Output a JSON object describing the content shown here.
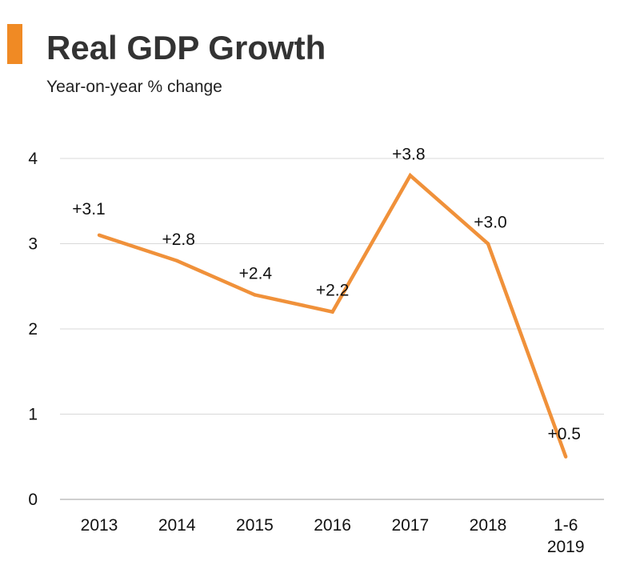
{
  "header": {
    "title": "Real GDP Growth",
    "subtitle": "Year-on-year % change"
  },
  "colors": {
    "accent": "#f08a24",
    "line": "#f0913a",
    "grid": "#d9d9d9"
  },
  "chart_data": {
    "type": "line",
    "title": "Real GDP Growth",
    "subtitle": "Year-on-year % change",
    "xlabel": "",
    "ylabel": "",
    "categories": [
      [
        "2013"
      ],
      [
        "2014"
      ],
      [
        "2015"
      ],
      [
        "2016"
      ],
      [
        "2017"
      ],
      [
        "2018"
      ],
      [
        "1-6",
        "2019"
      ]
    ],
    "series": [
      {
        "name": "Real GDP Growth",
        "values": [
          3.1,
          2.8,
          2.4,
          2.2,
          3.8,
          3.0,
          0.5
        ],
        "labels": [
          "+3.1",
          "+2.8",
          "+2.4",
          "+2.2",
          "+3.8",
          "+3.0",
          "+0.5"
        ]
      }
    ],
    "ylim": [
      0,
      4
    ],
    "yticks": [
      0,
      1,
      2,
      3,
      4
    ],
    "grid": true,
    "legend": "none"
  }
}
